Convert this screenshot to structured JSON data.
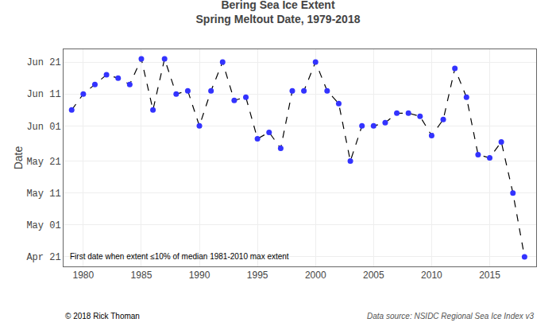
{
  "chart_data": {
    "type": "line",
    "title": "Bering Sea Ice Extent",
    "subtitle": "Spring Meltout Date, 1979-2018",
    "ylabel": "Date",
    "annotations": [
      "First date when extent ≤10% of median 1981-2010 max extent",
      "© 2018 Rick Thoman",
      "Data source: NSIDC Regional Sea Ice Index v3"
    ],
    "x": [
      1979,
      1980,
      1981,
      1982,
      1983,
      1984,
      1985,
      1986,
      1987,
      1988,
      1989,
      1990,
      1991,
      1992,
      1993,
      1994,
      1995,
      1996,
      1997,
      1998,
      1999,
      2000,
      2001,
      2002,
      2003,
      2004,
      2005,
      2006,
      2007,
      2008,
      2009,
      2010,
      2011,
      2012,
      2013,
      2014,
      2015,
      2016,
      2017,
      2018
    ],
    "series": [
      {
        "type": "line",
        "color": "#000000",
        "line_style": "dashed",
        "values": [
          157,
          162,
          165,
          168,
          167,
          165,
          173,
          157,
          173,
          162,
          163,
          152,
          163,
          172,
          160,
          161,
          148,
          150,
          145,
          163,
          163,
          172,
          163,
          159,
          141,
          152,
          152,
          153,
          156,
          156,
          155,
          149,
          154,
          170,
          161,
          143,
          142,
          147,
          131,
          111
        ]
      },
      {
        "type": "scatter",
        "color": "#3333ff",
        "marker": "circle",
        "values": [
          157,
          162,
          165,
          168,
          167,
          165,
          173,
          157,
          173,
          162,
          163,
          152,
          163,
          172,
          160,
          161,
          148,
          150,
          145,
          163,
          163,
          172,
          163,
          159,
          141,
          152,
          152,
          153,
          156,
          156,
          155,
          149,
          154,
          170,
          161,
          143,
          142,
          147,
          131,
          111
        ]
      }
    ],
    "xlim": [
      1978.3,
      2019.0
    ],
    "ylim": [
      108,
      176
    ],
    "xticks": [
      1980,
      1985,
      1990,
      1995,
      2000,
      2005,
      2010,
      2015
    ],
    "yticks": [
      {
        "value": 111,
        "label": "Apr 21"
      },
      {
        "value": 121,
        "label": "May 01"
      },
      {
        "value": 131,
        "label": "May 11"
      },
      {
        "value": 141,
        "label": "May 21"
      },
      {
        "value": 152,
        "label": "Jun 01"
      },
      {
        "value": 162,
        "label": "Jun 11"
      },
      {
        "value": 172,
        "label": "Jun 21"
      }
    ],
    "grid": true
  }
}
